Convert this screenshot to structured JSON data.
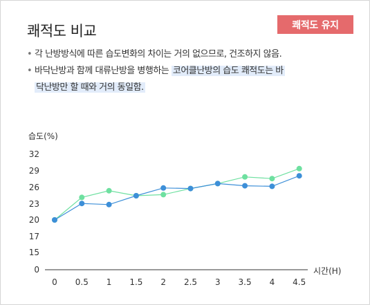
{
  "header": {
    "title": "쾌적도 비교",
    "badge": "쾌적도 유지"
  },
  "bullets": [
    {
      "text": "각 난방방식에 따른 습도변화의 차이는 거의 없으므로, 건조하지 않음."
    },
    {
      "text_plain": "바닥난방과 함께 대류난방을  병행하는 ",
      "text_highlight_1": "코어클난방의 습도 쾌적도는 바",
      "text_highlight_2": "닥난방만 할 때와 거의 동일함."
    }
  ],
  "colors": {
    "series_blue": "#3d8fd8",
    "series_green": "#6ee0a0",
    "badge": "#e56a6c"
  },
  "chart_data": {
    "type": "line",
    "ylabel": "습도(%)",
    "xlabel": "시간(H)",
    "x": [
      0,
      0.5,
      1,
      1.5,
      2,
      2.5,
      3,
      3.5,
      4,
      4.5
    ],
    "x_tick_labels": [
      "0",
      "0.5",
      "1",
      "1.5",
      "2",
      "2.5",
      "3",
      "3.5",
      "4",
      "4.5"
    ],
    "y_tick_labels": [
      "32",
      "29",
      "26",
      "23",
      "20",
      "17",
      "15",
      "0"
    ],
    "series": [
      {
        "color": "#6ee0a0",
        "values": [
          20,
          24.2,
          25.4,
          24.5,
          24.7,
          25.8,
          26.7,
          27.9,
          27.6,
          29.4
        ]
      },
      {
        "color": "#3d8fd8",
        "values": [
          20,
          23.1,
          22.9,
          24.5,
          25.9,
          25.8,
          26.7,
          26.3,
          26.2,
          28.1
        ]
      }
    ]
  }
}
